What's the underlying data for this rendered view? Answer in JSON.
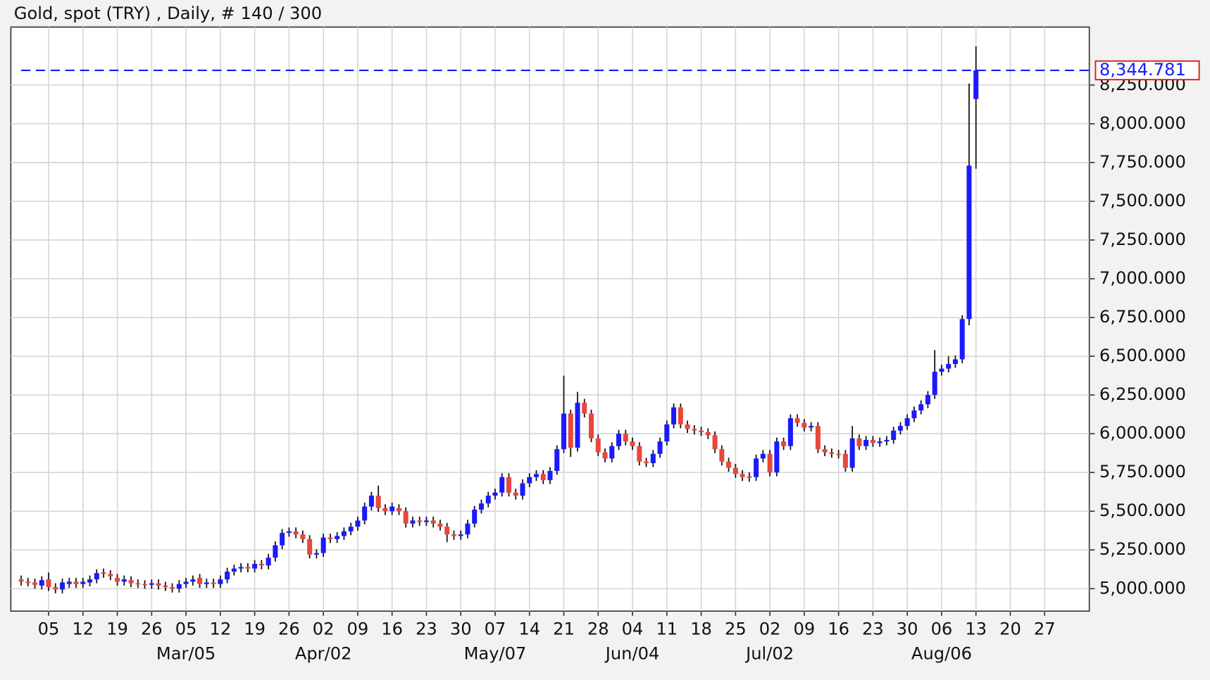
{
  "chart_data": {
    "type": "candlestick",
    "title": "Gold, spot (TRY) , Daily, # 140 / 300",
    "open": [
      5060,
      5045,
      5040,
      5020,
      5060,
      5010,
      4995,
      5030,
      5045,
      5030,
      5040,
      5060,
      5105,
      5095,
      5070,
      5045,
      5055,
      5035,
      5030,
      5025,
      5035,
      5020,
      5010,
      5000,
      5030,
      5045,
      5070,
      5030,
      5040,
      5030,
      5060,
      5110,
      5130,
      5140,
      5130,
      5160,
      5150,
      5200,
      5280,
      5360,
      5370,
      5350,
      5320,
      5220,
      5230,
      5330,
      5320,
      5340,
      5370,
      5400,
      5440,
      5530,
      5600,
      5520,
      5500,
      5520,
      5500,
      5420,
      5440,
      5430,
      5440,
      5420,
      5400,
      5350,
      5340,
      5350,
      5420,
      5510,
      5550,
      5600,
      5620,
      5720,
      5620,
      5600,
      5680,
      5720,
      5740,
      5700,
      5760,
      5900,
      6130,
      5910,
      6200,
      6130,
      5970,
      5880,
      5840,
      5920,
      6000,
      5950,
      5920,
      5820,
      5810,
      5870,
      5950,
      6060,
      6170,
      6060,
      6030,
      6020,
      6010,
      5990,
      5900,
      5820,
      5780,
      5740,
      5725,
      5720,
      5840,
      5870,
      5750,
      5950,
      5920,
      6100,
      6070,
      6040,
      6050,
      5900,
      5880,
      5870,
      5870,
      5780,
      5970,
      5920,
      5960,
      5940,
      5950,
      5960,
      6020,
      6050,
      6100,
      6150,
      6190,
      6250,
      6400,
      6420,
      6450,
      6480,
      6740,
      8160
    ],
    "high": [
      5085,
      5070,
      5065,
      5080,
      5105,
      5035,
      5065,
      5070,
      5070,
      5070,
      5085,
      5125,
      5130,
      5120,
      5095,
      5085,
      5080,
      5060,
      5055,
      5060,
      5060,
      5045,
      5035,
      5055,
      5070,
      5085,
      5095,
      5065,
      5065,
      5085,
      5135,
      5155,
      5165,
      5165,
      5185,
      5185,
      5225,
      5305,
      5385,
      5395,
      5395,
      5375,
      5345,
      5255,
      5355,
      5355,
      5365,
      5395,
      5425,
      5465,
      5555,
      5625,
      5665,
      5545,
      5555,
      5545,
      5525,
      5465,
      5465,
      5465,
      5465,
      5445,
      5425,
      5375,
      5375,
      5445,
      5535,
      5575,
      5625,
      5645,
      5745,
      5745,
      5645,
      5705,
      5745,
      5765,
      5765,
      5785,
      5925,
      6375,
      6155,
      6270,
      6225,
      6155,
      5995,
      5905,
      5945,
      6025,
      6025,
      5975,
      5945,
      5845,
      5895,
      5975,
      6085,
      6195,
      6195,
      6085,
      6055,
      6045,
      6035,
      6015,
      5925,
      5845,
      5805,
      5765,
      5750,
      5865,
      5895,
      5895,
      5975,
      5975,
      6125,
      6125,
      6095,
      6075,
      6075,
      5925,
      5905,
      5895,
      5895,
      6050,
      5995,
      5985,
      5985,
      5975,
      5985,
      6045,
      6075,
      6125,
      6175,
      6215,
      6275,
      6540,
      6445,
      6500,
      6505,
      6765,
      8260,
      8500
    ],
    "low": [
      5020,
      5015,
      5000,
      4995,
      4985,
      4970,
      4970,
      5005,
      5005,
      5005,
      5015,
      5035,
      5070,
      5055,
      5020,
      5020,
      5010,
      5005,
      5000,
      5000,
      4995,
      4985,
      4975,
      4975,
      5005,
      5020,
      5005,
      5005,
      5005,
      5005,
      5035,
      5085,
      5105,
      5105,
      5105,
      5125,
      5125,
      5175,
      5255,
      5335,
      5325,
      5295,
      5195,
      5195,
      5205,
      5295,
      5295,
      5315,
      5345,
      5375,
      5415,
      5505,
      5495,
      5475,
      5475,
      5475,
      5395,
      5395,
      5405,
      5405,
      5395,
      5375,
      5300,
      5315,
      5315,
      5325,
      5395,
      5485,
      5525,
      5575,
      5595,
      5595,
      5575,
      5575,
      5655,
      5695,
      5675,
      5675,
      5735,
      5875,
      5850,
      5885,
      6105,
      5945,
      5855,
      5815,
      5815,
      5895,
      5925,
      5895,
      5795,
      5785,
      5785,
      5845,
      5925,
      6035,
      6035,
      6005,
      5995,
      5985,
      5965,
      5875,
      5795,
      5755,
      5715,
      5695,
      5690,
      5695,
      5815,
      5725,
      5725,
      5895,
      5895,
      6045,
      6015,
      6015,
      5875,
      5855,
      5845,
      5840,
      5755,
      5755,
      5895,
      5895,
      5915,
      5915,
      5925,
      5935,
      5995,
      6025,
      6075,
      6125,
      6165,
      6225,
      6375,
      6395,
      6425,
      6455,
      6700,
      7710
    ],
    "close": [
      5045,
      5040,
      5025,
      5055,
      5010,
      4995,
      5040,
      5045,
      5030,
      5045,
      5060,
      5100,
      5095,
      5080,
      5045,
      5060,
      5035,
      5030,
      5025,
      5035,
      5020,
      5010,
      5000,
      5030,
      5045,
      5060,
      5030,
      5040,
      5030,
      5060,
      5110,
      5130,
      5140,
      5130,
      5160,
      5150,
      5200,
      5280,
      5360,
      5370,
      5350,
      5320,
      5220,
      5230,
      5330,
      5320,
      5340,
      5370,
      5400,
      5440,
      5530,
      5600,
      5520,
      5500,
      5530,
      5500,
      5420,
      5440,
      5430,
      5440,
      5420,
      5400,
      5350,
      5340,
      5350,
      5420,
      5510,
      5550,
      5600,
      5620,
      5720,
      5620,
      5600,
      5680,
      5720,
      5740,
      5700,
      5760,
      5900,
      6130,
      5910,
      6200,
      6130,
      5970,
      5880,
      5840,
      5920,
      6000,
      5950,
      5920,
      5820,
      5810,
      5870,
      5950,
      6060,
      6170,
      6060,
      6030,
      6020,
      6010,
      5990,
      5900,
      5820,
      5780,
      5740,
      5720,
      5715,
      5840,
      5870,
      5750,
      5950,
      5920,
      6100,
      6070,
      6040,
      6050,
      5900,
      5880,
      5870,
      5865,
      5780,
      5970,
      5920,
      5960,
      5940,
      5950,
      5960,
      6020,
      6050,
      6100,
      6150,
      6190,
      6250,
      6400,
      6420,
      6450,
      6480,
      6740,
      7730,
      8344.781
    ],
    "last_price_label": "8,344.781",
    "up_color": "#1a1aff",
    "down_color": "#e8473c",
    "wick_color": "#111111",
    "last_line_color": "#1a1aff",
    "xlim": [
      -1.5,
      155.5
    ],
    "xticks": [
      {
        "value": 4,
        "label": "05"
      },
      {
        "value": 9,
        "label": "12"
      },
      {
        "value": 14,
        "label": "19"
      },
      {
        "value": 19,
        "label": "26"
      },
      {
        "value": 24,
        "label": "05"
      },
      {
        "value": 29,
        "label": "12"
      },
      {
        "value": 34,
        "label": "19"
      },
      {
        "value": 39,
        "label": "26"
      },
      {
        "value": 44,
        "label": "02"
      },
      {
        "value": 49,
        "label": "09"
      },
      {
        "value": 54,
        "label": "16"
      },
      {
        "value": 59,
        "label": "23"
      },
      {
        "value": 64,
        "label": "30"
      },
      {
        "value": 69,
        "label": "07"
      },
      {
        "value": 74,
        "label": "14"
      },
      {
        "value": 79,
        "label": "21"
      },
      {
        "value": 84,
        "label": "28"
      },
      {
        "value": 89,
        "label": "04"
      },
      {
        "value": 94,
        "label": "11"
      },
      {
        "value": 99,
        "label": "18"
      },
      {
        "value": 104,
        "label": "25"
      },
      {
        "value": 109,
        "label": "02"
      },
      {
        "value": 114,
        "label": "09"
      },
      {
        "value": 119,
        "label": "16"
      },
      {
        "value": 124,
        "label": "23"
      },
      {
        "value": 129,
        "label": "30"
      },
      {
        "value": 134,
        "label": "06"
      },
      {
        "value": 139,
        "label": "13"
      },
      {
        "value": 144,
        "label": "20"
      },
      {
        "value": 149,
        "label": "27"
      }
    ],
    "month_ticks": [
      {
        "value": 24,
        "label": "Mar/05"
      },
      {
        "value": 44,
        "label": "Apr/02"
      },
      {
        "value": 69,
        "label": "May/07"
      },
      {
        "value": 89,
        "label": "Jun/04"
      },
      {
        "value": 109,
        "label": "Jul/02"
      },
      {
        "value": 134,
        "label": "Aug/06"
      }
    ],
    "ylim": [
      4855,
      8624
    ],
    "yticks": [
      {
        "value": 5000,
        "label": "5,000.000"
      },
      {
        "value": 5250,
        "label": "5,250.000"
      },
      {
        "value": 5500,
        "label": "5,500.000"
      },
      {
        "value": 5750,
        "label": "5,750.000"
      },
      {
        "value": 6000,
        "label": "6,000.000"
      },
      {
        "value": 6250,
        "label": "6,250.000"
      },
      {
        "value": 6500,
        "label": "6,500.000"
      },
      {
        "value": 6750,
        "label": "6,750.000"
      },
      {
        "value": 7000,
        "label": "7,000.000"
      },
      {
        "value": 7250,
        "label": "7,250.000"
      },
      {
        "value": 7500,
        "label": "7,500.000"
      },
      {
        "value": 7750,
        "label": "7,750.000"
      },
      {
        "value": 8000,
        "label": "8,000.000"
      },
      {
        "value": 8250,
        "label": "8,250.000"
      }
    ],
    "grid": true
  }
}
